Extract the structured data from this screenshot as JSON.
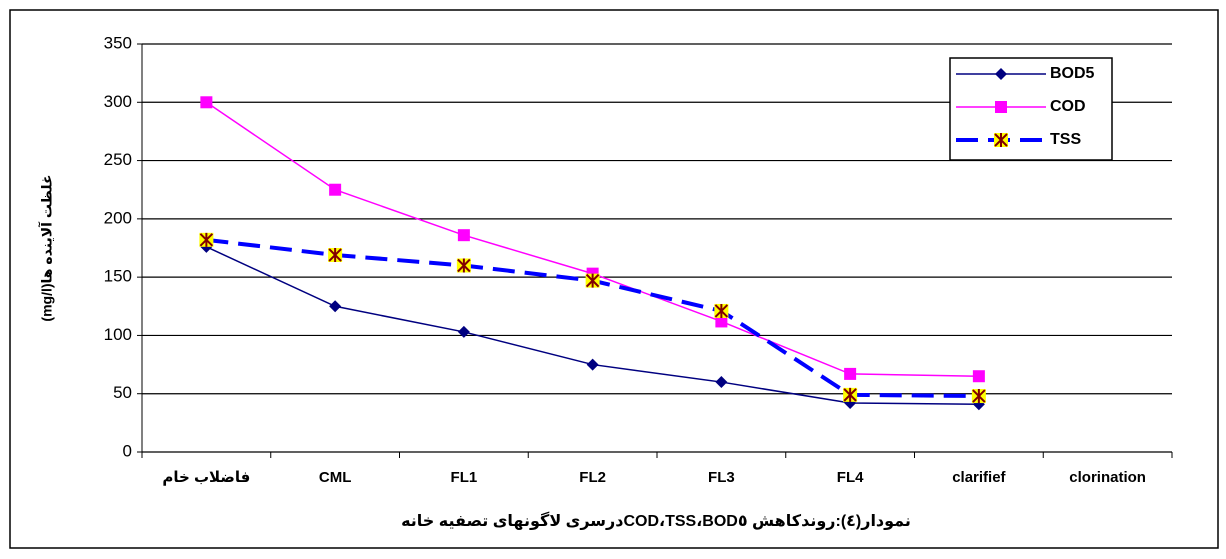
{
  "chart_data": {
    "type": "line",
    "title": "نمودار(٤):روندکاهش BOD٥،COD،TSSدرسری لاگونهای تصفیه خانه",
    "y_label": "غلظت آلاینده ها(mg/l)",
    "categories": [
      "فاضلاب خام",
      "CML",
      "FL1",
      "FL2",
      "FL3",
      "FL4",
      "clarifief",
      "clorination"
    ],
    "series": [
      {
        "name": "BOD5",
        "color": "#000080",
        "marker": "diamond",
        "dashed": false,
        "values": [
          176,
          125,
          103,
          75,
          60,
          42,
          41,
          null
        ]
      },
      {
        "name": "COD",
        "color": "#ff00ff",
        "marker": "square",
        "dashed": false,
        "values": [
          300,
          225,
          186,
          153,
          112,
          67,
          65,
          null
        ]
      },
      {
        "name": "TSS",
        "color": "#0000ff",
        "marker": "star",
        "dashed": true,
        "values": [
          182,
          169,
          160,
          147,
          121,
          49,
          48,
          null
        ]
      }
    ],
    "ylim": [
      0,
      350
    ],
    "yticks": [
      0,
      50,
      100,
      150,
      200,
      250,
      300,
      350
    ],
    "grid": true,
    "legend": "top-right"
  }
}
